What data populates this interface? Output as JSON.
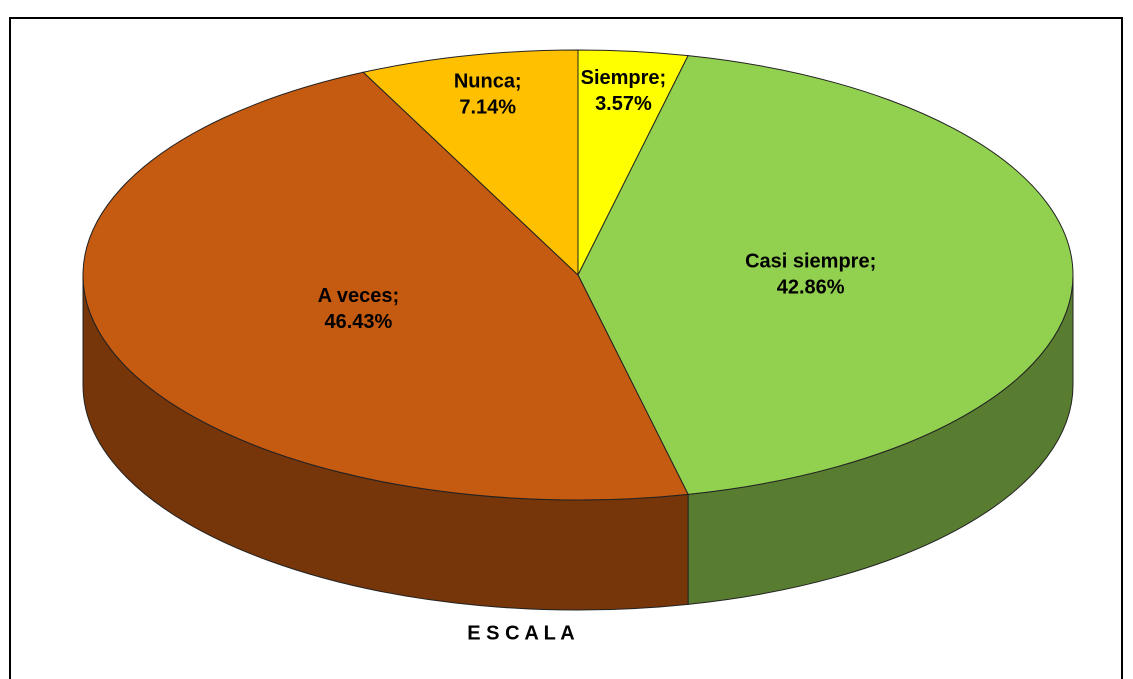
{
  "chart_data": {
    "type": "pie",
    "title": "E S C A L A",
    "categories": [
      "Siempre;",
      "Casi siempre;",
      "A veces;",
      "Nunca;"
    ],
    "values": [
      3.57,
      42.86,
      46.43,
      7.14
    ],
    "value_labels": [
      "3.57%",
      "42.86%",
      "46.43%",
      "7.14%"
    ],
    "colors": [
      "#ffff00",
      "#92d050",
      "#c55a11",
      "#ffc000"
    ],
    "three_d": true
  }
}
